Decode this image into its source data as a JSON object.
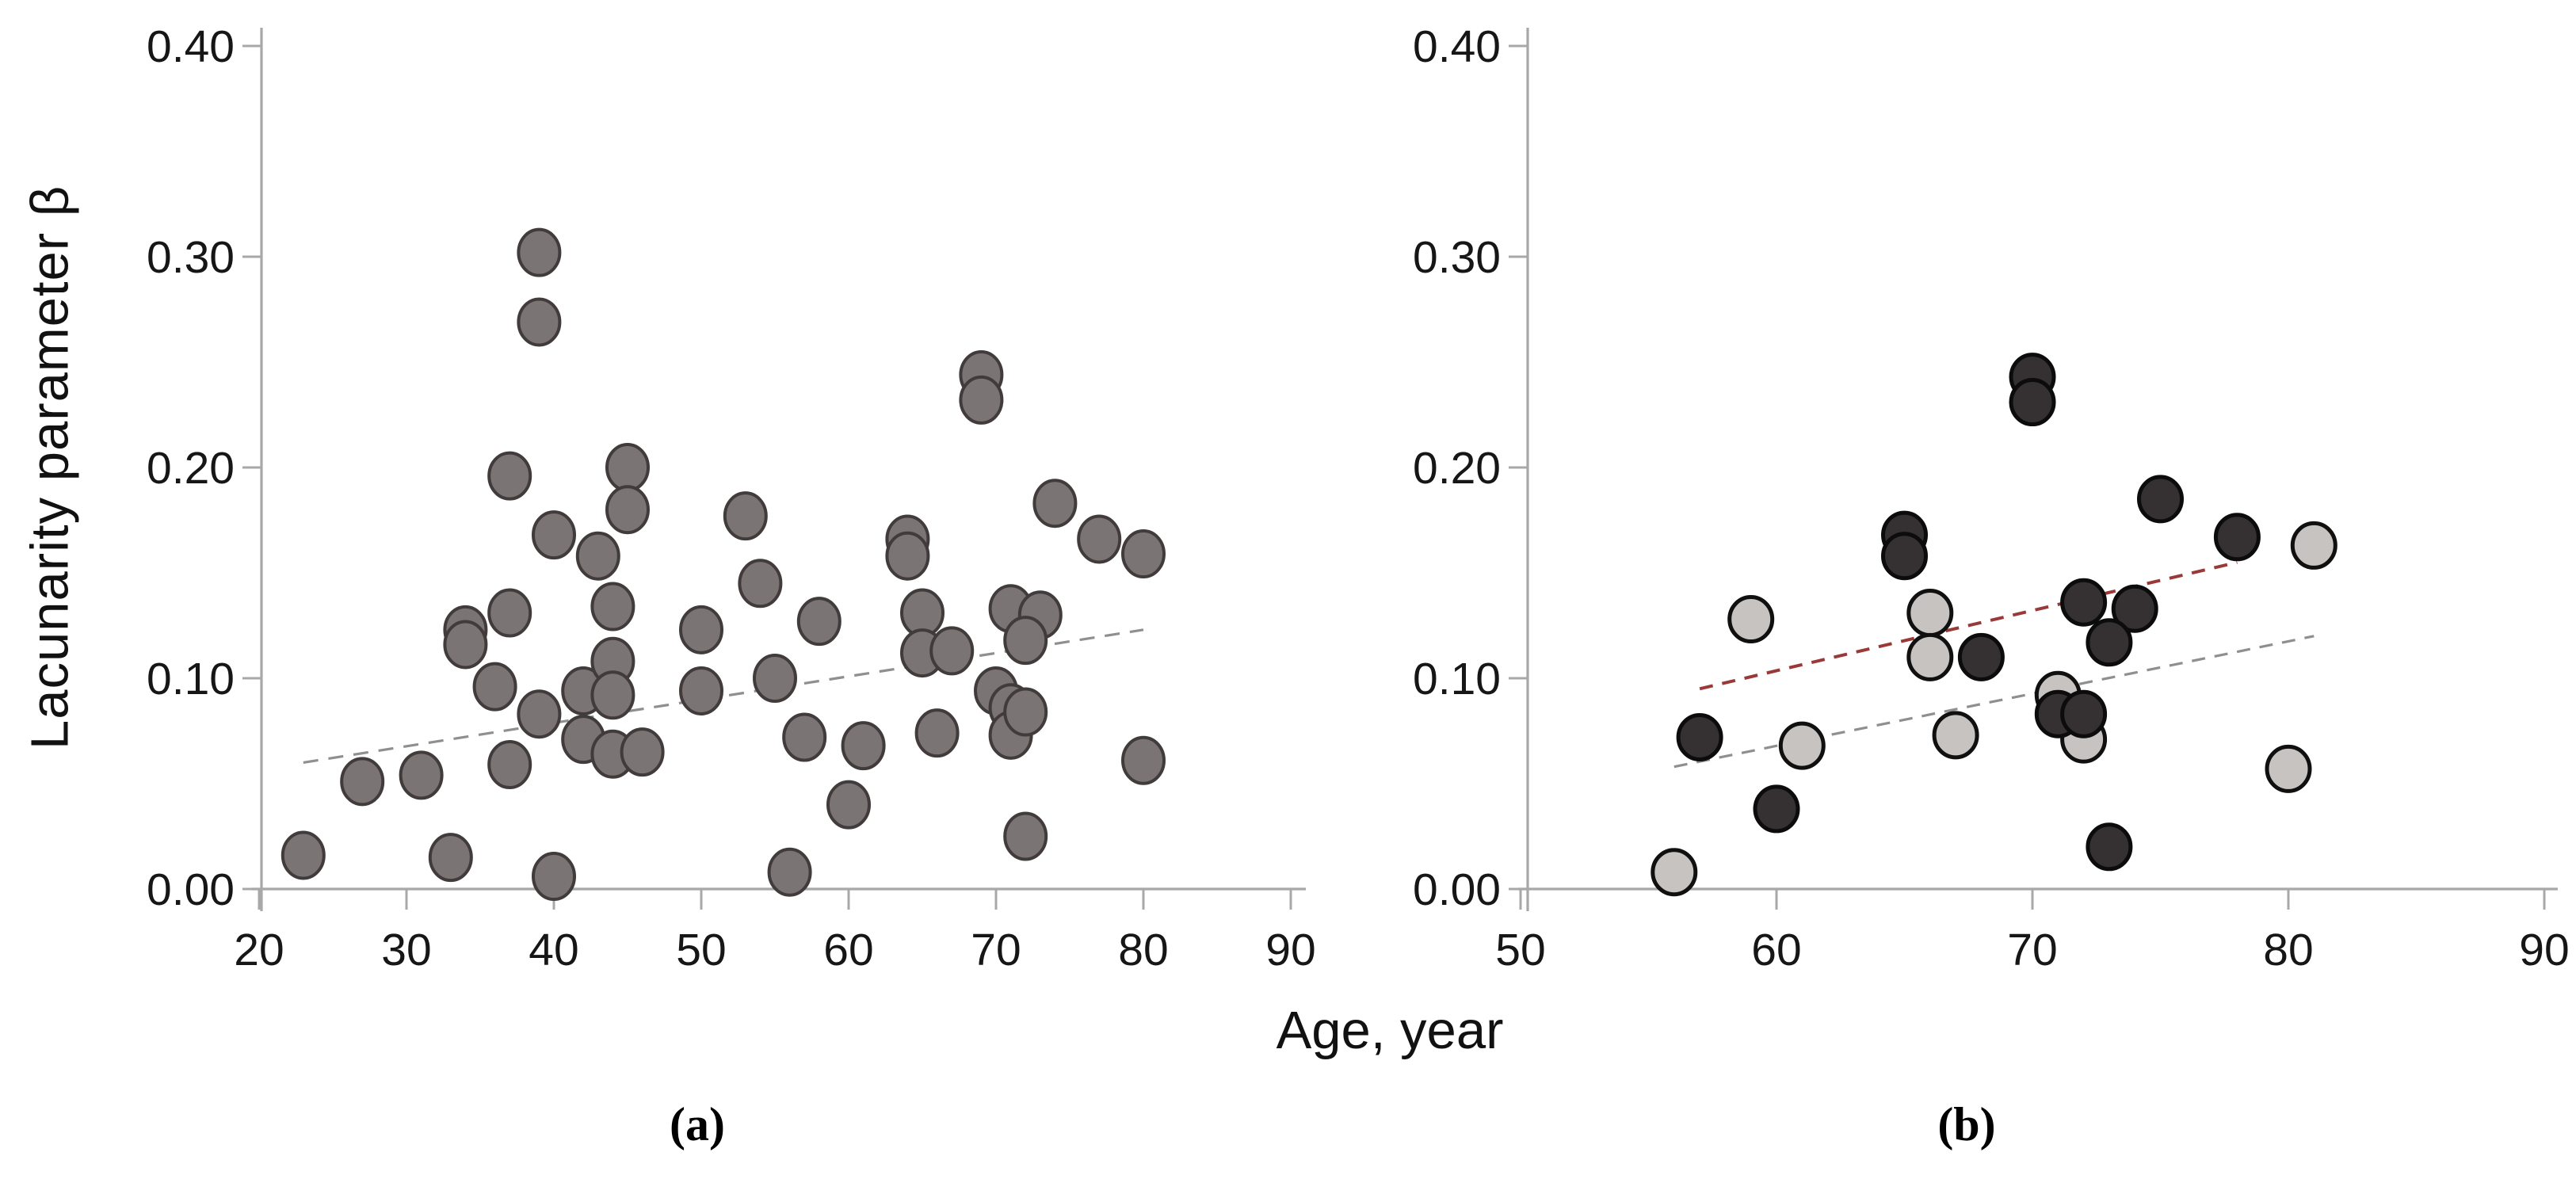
{
  "figure": {
    "ylabel": "Lacunarity parameter β",
    "xlabel": "Age, year",
    "captions": [
      "(a)",
      "(b)"
    ],
    "background": "#ffffff",
    "axis_color": "#a8a8a8",
    "text_color": "#161616"
  },
  "chart_data": [
    {
      "type": "scatter",
      "panel": "(a)",
      "xlabel": "Age, year",
      "ylabel": "Lacunarity parameter β",
      "xlim": [
        20,
        90
      ],
      "ylim": [
        0.0,
        0.4
      ],
      "xticks": [
        20,
        30,
        40,
        50,
        60,
        70,
        80,
        90
      ],
      "yticks": [
        "0.00",
        "0.10",
        "0.20",
        "0.30",
        "0.40"
      ],
      "grid": false,
      "legend": "none",
      "series": [
        {
          "name": "all-subjects-gray-circles",
          "marker": {
            "fill": "#7b7475",
            "stroke": "#413b3c",
            "rx": 26,
            "ry": 29,
            "stroke_width": 4
          },
          "points": [
            [
              23,
              0.016
            ],
            [
              27,
              0.051
            ],
            [
              31,
              0.054
            ],
            [
              33,
              0.015
            ],
            [
              34,
              0.123
            ],
            [
              34,
              0.116
            ],
            [
              36,
              0.096
            ],
            [
              37,
              0.059
            ],
            [
              37,
              0.131
            ],
            [
              37,
              0.196
            ],
            [
              39,
              0.302
            ],
            [
              39,
              0.269
            ],
            [
              39,
              0.083
            ],
            [
              40,
              0.006
            ],
            [
              40,
              0.168
            ],
            [
              42,
              0.094
            ],
            [
              42,
              0.071
            ],
            [
              43,
              0.158
            ],
            [
              44,
              0.108
            ],
            [
              44,
              0.092
            ],
            [
              44,
              0.134
            ],
            [
              44,
              0.064
            ],
            [
              45,
              0.2
            ],
            [
              45,
              0.18
            ],
            [
              46,
              0.065
            ],
            [
              50,
              0.123
            ],
            [
              50,
              0.094
            ],
            [
              53,
              0.177
            ],
            [
              54,
              0.145
            ],
            [
              55,
              0.1
            ],
            [
              56,
              0.008
            ],
            [
              57,
              0.072
            ],
            [
              58,
              0.127
            ],
            [
              60,
              0.04
            ],
            [
              61,
              0.068
            ],
            [
              64,
              0.166
            ],
            [
              64,
              0.158
            ],
            [
              65,
              0.131
            ],
            [
              65,
              0.112
            ],
            [
              66,
              0.074
            ],
            [
              67,
              0.113
            ],
            [
              69,
              0.244
            ],
            [
              69,
              0.232
            ],
            [
              70,
              0.094
            ],
            [
              71,
              0.086
            ],
            [
              71,
              0.073
            ],
            [
              72,
              0.084
            ],
            [
              71,
              0.133
            ],
            [
              73,
              0.13
            ],
            [
              72,
              0.118
            ],
            [
              72,
              0.025
            ],
            [
              74,
              0.183
            ],
            [
              77,
              0.166
            ],
            [
              80,
              0.159
            ],
            [
              80,
              0.061
            ]
          ]
        }
      ],
      "trendlines": [
        {
          "name": "linear-fit-all",
          "color": "#8f8f8f",
          "width": 3.2,
          "dash": "19 13",
          "from": [
            23,
            0.06
          ],
          "to": [
            80,
            0.123
          ]
        }
      ]
    },
    {
      "type": "scatter",
      "panel": "(b)",
      "xlabel": "Age, year",
      "ylabel": "",
      "xlim": [
        50,
        90
      ],
      "ylim": [
        0.0,
        0.4
      ],
      "xticks": [
        50,
        60,
        70,
        80,
        90
      ],
      "yticks": [
        "0.00",
        "0.10",
        "0.20",
        "0.30",
        "0.40"
      ],
      "grid": false,
      "legend": "none",
      "series": [
        {
          "name": "light-gray-circles",
          "marker": {
            "fill": "#c7c3c0",
            "stroke": "#101010",
            "rx": 27,
            "ry": 28,
            "stroke_width": 5
          },
          "points": [
            [
              56,
              0.008
            ],
            [
              59,
              0.128
            ],
            [
              61,
              0.068
            ],
            [
              66,
              0.131
            ],
            [
              66,
              0.11
            ],
            [
              67,
              0.073
            ],
            [
              71,
              0.092
            ],
            [
              72,
              0.071
            ],
            [
              80,
              0.057
            ],
            [
              81,
              0.163
            ]
          ]
        },
        {
          "name": "dark-circles",
          "marker": {
            "fill": "#353031",
            "stroke": "#0c0c0c",
            "rx": 27,
            "ry": 28,
            "stroke_width": 5
          },
          "points": [
            [
              57,
              0.072
            ],
            [
              60,
              0.038
            ],
            [
              65,
              0.168
            ],
            [
              65,
              0.158
            ],
            [
              68,
              0.11
            ],
            [
              70,
              0.243
            ],
            [
              70,
              0.231
            ],
            [
              71,
              0.083
            ],
            [
              72,
              0.083
            ],
            [
              72,
              0.136
            ],
            [
              74,
              0.133
            ],
            [
              73,
              0.117
            ],
            [
              73,
              0.02
            ],
            [
              75,
              0.185
            ],
            [
              78,
              0.167
            ]
          ]
        }
      ],
      "trendlines": [
        {
          "name": "linear-fit-upper-red",
          "color": "#9a3a38",
          "width": 4,
          "dash": "17 12",
          "from": [
            57,
            0.095
          ],
          "to": [
            78,
            0.155
          ]
        },
        {
          "name": "linear-fit-lower-gray",
          "color": "#8f8f8f",
          "width": 3.2,
          "dash": "17 12",
          "from": [
            56,
            0.058
          ],
          "to": [
            81,
            0.12
          ]
        }
      ]
    }
  ]
}
